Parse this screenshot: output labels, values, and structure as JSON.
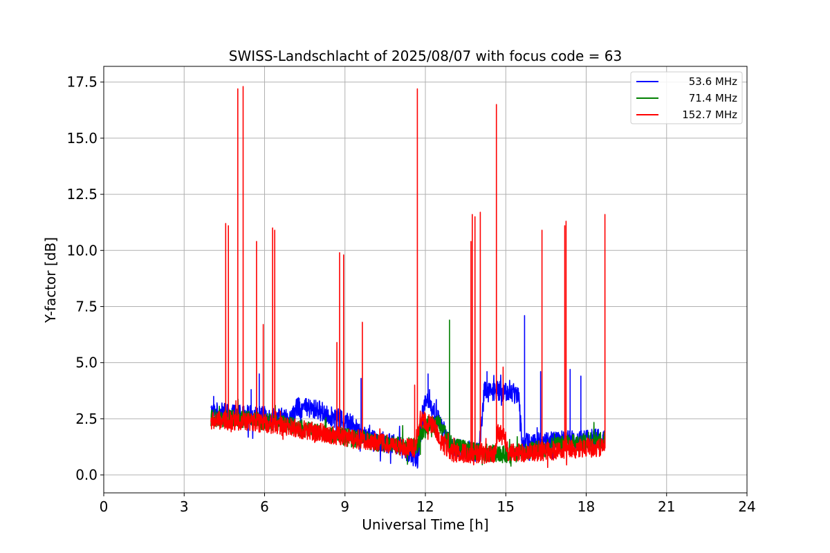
{
  "chart_data": {
    "type": "line",
    "title": "SWISS-Landschlacht of 2025/08/07 with focus code = 63",
    "xlabel": "Universal Time [h]",
    "ylabel": "Y-factor [dB]",
    "xlim": [
      0,
      24
    ],
    "ylim": [
      -0.8,
      18.2
    ],
    "xticks": [
      0,
      3,
      6,
      9,
      12,
      15,
      18,
      21,
      24
    ],
    "xtick_labels": [
      "0",
      "3",
      "6",
      "9",
      "12",
      "15",
      "18",
      "21",
      "24"
    ],
    "yticks": [
      0,
      2.5,
      5,
      7.5,
      10,
      12.5,
      15,
      17.5
    ],
    "ytick_labels": [
      "0.0",
      "2.5",
      "5.0",
      "7.5",
      "10.0",
      "12.5",
      "15.0",
      "17.5"
    ],
    "grid": true,
    "legend_position": "top-right",
    "series": [
      {
        "name": "53.6 MHz",
        "color": "#0000ff",
        "base": [
          [
            4.0,
            2.8
          ],
          [
            5.0,
            2.7
          ],
          [
            6.0,
            2.6
          ],
          [
            7.0,
            2.5
          ],
          [
            7.2,
            3.0
          ],
          [
            8.0,
            2.9
          ],
          [
            8.5,
            2.6
          ],
          [
            9.0,
            2.4
          ],
          [
            10.0,
            1.6
          ],
          [
            11.0,
            1.3
          ],
          [
            11.5,
            0.9
          ],
          [
            11.7,
            0.7
          ],
          [
            12.0,
            3.5
          ],
          [
            12.5,
            2.4
          ],
          [
            13.0,
            1.2
          ],
          [
            14.0,
            1.0
          ],
          [
            14.2,
            3.8
          ],
          [
            15.0,
            3.7
          ],
          [
            15.5,
            3.6
          ],
          [
            15.6,
            1.4
          ],
          [
            16.5,
            1.5
          ],
          [
            17.0,
            1.5
          ],
          [
            18.0,
            1.6
          ],
          [
            18.7,
            1.6
          ]
        ],
        "amp": 0.45,
        "spikes": [
          [
            4.1,
            3.5
          ],
          [
            5.5,
            3.8
          ],
          [
            5.8,
            4.5
          ],
          [
            9.6,
            4.3
          ],
          [
            12.1,
            4.5
          ],
          [
            12.9,
            4.2
          ],
          [
            14.3,
            4.6
          ],
          [
            15.7,
            7.1
          ],
          [
            16.3,
            4.6
          ],
          [
            17.4,
            4.7
          ],
          [
            17.8,
            4.4
          ]
        ]
      },
      {
        "name": "71.4 MHz",
        "color": "#008000",
        "base": [
          [
            4.0,
            2.5
          ],
          [
            5.0,
            2.5
          ],
          [
            6.0,
            2.4
          ],
          [
            7.0,
            2.2
          ],
          [
            8.0,
            1.9
          ],
          [
            9.0,
            1.7
          ],
          [
            10.0,
            1.5
          ],
          [
            11.0,
            1.3
          ],
          [
            11.7,
            1.3
          ],
          [
            12.0,
            2.2
          ],
          [
            12.5,
            2.3
          ],
          [
            13.0,
            1.3
          ],
          [
            14.0,
            1.0
          ],
          [
            15.0,
            0.9
          ],
          [
            16.0,
            1.1
          ],
          [
            17.0,
            1.3
          ],
          [
            18.0,
            1.5
          ],
          [
            18.7,
            1.5
          ]
        ],
        "amp": 0.4,
        "spikes": [
          [
            12.9,
            6.9
          ],
          [
            6.4,
            3.1
          ]
        ]
      },
      {
        "name": "152.7 MHz",
        "color": "#ff0000",
        "base": [
          [
            4.0,
            2.4
          ],
          [
            5.0,
            2.4
          ],
          [
            6.0,
            2.3
          ],
          [
            7.0,
            2.1
          ],
          [
            8.0,
            1.9
          ],
          [
            9.0,
            1.7
          ],
          [
            10.0,
            1.5
          ],
          [
            11.0,
            1.3
          ],
          [
            11.6,
            1.2
          ],
          [
            11.8,
            2.5
          ],
          [
            12.3,
            2.2
          ],
          [
            12.6,
            1.4
          ],
          [
            13.0,
            1.0
          ],
          [
            14.0,
            0.9
          ],
          [
            14.6,
            0.9
          ],
          [
            14.7,
            1.9
          ],
          [
            15.0,
            1.6
          ],
          [
            15.1,
            1.0
          ],
          [
            16.0,
            1.0
          ],
          [
            17.0,
            1.1
          ],
          [
            18.0,
            1.2
          ],
          [
            18.7,
            1.2
          ]
        ],
        "amp": 0.42,
        "spikes": [
          [
            4.55,
            11.2
          ],
          [
            4.65,
            11.1
          ],
          [
            5.0,
            17.2
          ],
          [
            5.2,
            17.3
          ],
          [
            5.7,
            10.4
          ],
          [
            5.95,
            6.7
          ],
          [
            6.3,
            11.0
          ],
          [
            6.38,
            10.9
          ],
          [
            8.7,
            5.9
          ],
          [
            8.8,
            9.9
          ],
          [
            8.95,
            9.8
          ],
          [
            9.65,
            6.8
          ],
          [
            11.6,
            4.0
          ],
          [
            11.7,
            17.2
          ],
          [
            13.7,
            10.4
          ],
          [
            13.75,
            11.6
          ],
          [
            13.85,
            11.5
          ],
          [
            14.05,
            11.7
          ],
          [
            14.65,
            16.5
          ],
          [
            14.9,
            4.8
          ],
          [
            16.35,
            10.9
          ],
          [
            17.2,
            11.1
          ],
          [
            17.25,
            11.3
          ],
          [
            18.7,
            11.6
          ]
        ]
      }
    ]
  }
}
